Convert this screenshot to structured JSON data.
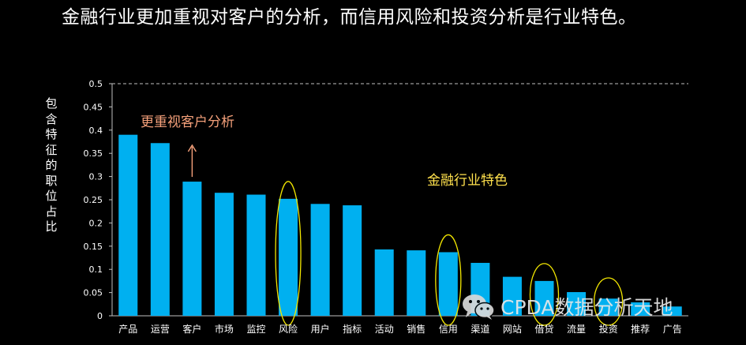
{
  "headline": "金融行业更加重视对客户的分析，而信用风险和投资分析是行业特色。",
  "watermark": "CPDA数据分析天地",
  "colors": {
    "bar": "#00b0f0",
    "highlight_ring": "#f2e600",
    "annotation_customer": "#f4a07a",
    "annotation_finance": "#ffe14d",
    "arrow": "#f4a07a",
    "gridline": "#bfbfbf"
  },
  "chart_data": {
    "type": "bar",
    "categories": [
      "产品",
      "运营",
      "客户",
      "市场",
      "监控",
      "风险",
      "用户",
      "指标",
      "活动",
      "销售",
      "信用",
      "渠道",
      "网站",
      "借贷",
      "流量",
      "投资",
      "推荐",
      "广告"
    ],
    "values": [
      0.39,
      0.372,
      0.289,
      0.265,
      0.261,
      0.252,
      0.241,
      0.238,
      0.143,
      0.141,
      0.137,
      0.114,
      0.084,
      0.075,
      0.051,
      0.037,
      0.029,
      0.02
    ],
    "ylabel": "包含特征的职位占比",
    "ylim": [
      0,
      0.5
    ],
    "yticks": [
      "0",
      "0.05",
      "0.1",
      "0.15",
      "0.2",
      "0.25",
      "0.3",
      "0.35",
      "0.4",
      "0.45",
      "0.5"
    ],
    "grid": "dashed line at 0.5 only",
    "highlighted_categories": [
      "风险",
      "信用",
      "借贷",
      "投资"
    ],
    "annotations": [
      {
        "text": "更重视客户分析",
        "target": "客户"
      },
      {
        "text": "金融行业特色",
        "target": "信用"
      }
    ]
  }
}
